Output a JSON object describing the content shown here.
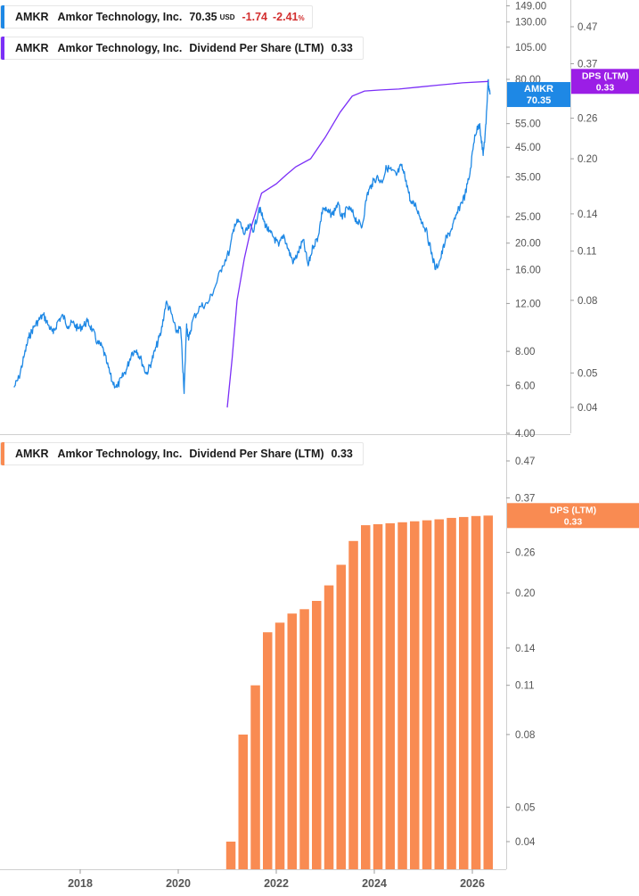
{
  "legend": {
    "price": {
      "ticker": "AMKR",
      "name": "Amkor Technology, Inc.",
      "value": "70.35",
      "currency": "USD",
      "change": "-1.74",
      "change_pct": "-2.41",
      "pct_sign": "%",
      "color": "#1e88e5"
    },
    "dps_top": {
      "ticker": "AMKR",
      "name": "Amkor Technology, Inc.",
      "series": "Dividend Per Share (LTM)",
      "value": "0.33",
      "color": "#7b2ff7"
    },
    "dps_bottom": {
      "ticker": "AMKR",
      "name": "Amkor Technology, Inc.",
      "series": "Dividend Per Share (LTM)",
      "value": "0.33",
      "color": "#f98b52"
    }
  },
  "chart_data": [
    {
      "type": "line",
      "scale": "log",
      "series": [
        {
          "name": "AMKR",
          "color": "#1e88e5",
          "axis": "left",
          "x": [
            2016.65,
            2016.75,
            2016.85,
            2016.95,
            2017.05,
            2017.15,
            2017.25,
            2017.35,
            2017.45,
            2017.55,
            2017.65,
            2017.75,
            2017.85,
            2017.95,
            2018.05,
            2018.15,
            2018.25,
            2018.35,
            2018.45,
            2018.55,
            2018.65,
            2018.75,
            2018.85,
            2018.95,
            2019.05,
            2019.15,
            2019.25,
            2019.35,
            2019.45,
            2019.55,
            2019.65,
            2019.75,
            2019.85,
            2019.95,
            2020.05,
            2020.12,
            2020.17,
            2020.21,
            2020.3,
            2020.45,
            2020.6,
            2020.75,
            2020.9,
            2021.05,
            2021.15,
            2021.25,
            2021.35,
            2021.45,
            2021.55,
            2021.65,
            2021.75,
            2021.85,
            2021.95,
            2022.05,
            2022.15,
            2022.25,
            2022.35,
            2022.45,
            2022.55,
            2022.65,
            2022.75,
            2022.85,
            2022.95,
            2023.05,
            2023.15,
            2023.25,
            2023.35,
            2023.45,
            2023.55,
            2023.65,
            2023.75,
            2023.85,
            2023.95,
            2024.05,
            2024.15,
            2024.25,
            2024.35,
            2024.45,
            2024.55,
            2024.65,
            2024.75,
            2024.85,
            2024.95,
            2025.05,
            2025.15,
            2025.25,
            2025.35,
            2025.45,
            2025.55,
            2025.65,
            2025.75,
            2025.85,
            2025.95,
            2026.05,
            2026.15,
            2026.22,
            2026.28,
            2026.32,
            2026.36
          ],
          "y": [
            5.9,
            6.4,
            7.6,
            9.0,
            9.8,
            10.4,
            10.9,
            10.0,
            9.3,
            10.4,
            10.8,
            9.9,
            10.2,
            9.7,
            9.9,
            10.3,
            9.6,
            8.6,
            8.3,
            7.2,
            6.2,
            5.9,
            6.4,
            6.9,
            7.9,
            8.1,
            7.4,
            6.6,
            7.3,
            8.3,
            9.4,
            12.1,
            11.2,
            9.5,
            9.7,
            5.6,
            10.1,
            8.8,
            10.5,
            11.7,
            12.0,
            13.8,
            16.5,
            18.8,
            23.5,
            24.0,
            21.5,
            23.0,
            22.5,
            27.0,
            24.0,
            22.0,
            21.0,
            19.5,
            21.5,
            18.8,
            17.0,
            18.5,
            20.5,
            16.5,
            19.5,
            21.0,
            27.0,
            26.0,
            25.5,
            28.0,
            24.5,
            27.0,
            26.0,
            24.0,
            23.0,
            30.0,
            33.0,
            35.0,
            33.5,
            38.0,
            37.0,
            35.5,
            38.5,
            34.0,
            28.0,
            27.5,
            24.5,
            22.5,
            19.0,
            16.0,
            17.5,
            20.5,
            22.0,
            24.5,
            27.5,
            30.0,
            36.0,
            50.0,
            55.0,
            42.0,
            55.0,
            79.0,
            70.35
          ]
        },
        {
          "name": "DPS (LTM)",
          "color": "#7b2ff7",
          "axis": "right",
          "x": [
            2021.0,
            2021.1,
            2021.2,
            2021.35,
            2021.5,
            2021.7,
            2022.0,
            2022.2,
            2022.4,
            2022.7,
            2023.0,
            2023.3,
            2023.55,
            2023.8,
            2024.1,
            2024.5,
            2024.9,
            2025.3,
            2025.8,
            2026.33
          ],
          "y": [
            0.04,
            0.055,
            0.08,
            0.105,
            0.13,
            0.16,
            0.17,
            0.18,
            0.19,
            0.2,
            0.23,
            0.27,
            0.3,
            0.31,
            0.312,
            0.314,
            0.318,
            0.322,
            0.327,
            0.33
          ]
        }
      ],
      "price_ticks": [
        "149.00",
        "130.00",
        "105.00",
        "80.00",
        "55.00",
        "45.00",
        "35.00",
        "25.00",
        "20.00",
        "16.00",
        "12.00",
        "8.00",
        "6.00",
        "4.00"
      ],
      "dps_ticks": [
        "0.47",
        "0.37",
        "0.26",
        "0.20",
        "0.14",
        "0.11",
        "0.08",
        "0.05",
        "0.04"
      ],
      "price_label": {
        "name": "AMKR",
        "value": "70.35",
        "color": "#1e88e5"
      },
      "dps_label": {
        "name": "DPS (LTM)",
        "value": "0.33",
        "color": "#9b1ee6"
      },
      "grid": false
    },
    {
      "type": "bar",
      "scale": "log",
      "series": [
        {
          "name": "DPS (LTM)",
          "color": "#f98b52",
          "x": [
            2021.0,
            2021.25,
            2021.5,
            2021.75,
            2022.0,
            2022.25,
            2022.5,
            2022.75,
            2023.0,
            2023.25,
            2023.5,
            2023.75,
            2024.0,
            2024.25,
            2024.5,
            2024.75,
            2025.0,
            2025.25,
            2025.5,
            2025.75,
            2026.0,
            2026.25
          ],
          "values": [
            0.04,
            0.08,
            0.11,
            0.155,
            0.165,
            0.175,
            0.18,
            0.19,
            0.21,
            0.24,
            0.28,
            0.31,
            0.312,
            0.314,
            0.316,
            0.318,
            0.32,
            0.322,
            0.325,
            0.327,
            0.329,
            0.33
          ]
        }
      ],
      "y_ticks": [
        "0.47",
        "0.37",
        "0.26",
        "0.20",
        "0.14",
        "0.11",
        "0.08",
        "0.05",
        "0.04"
      ],
      "x_ticks": [
        "2018",
        "2020",
        "2022",
        "2024",
        "2026"
      ],
      "dps_label": {
        "name": "DPS (LTM)",
        "value": "0.33",
        "color": "#f98b52"
      },
      "grid": false
    }
  ]
}
